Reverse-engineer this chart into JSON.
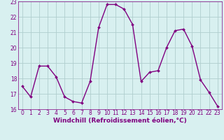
{
  "x": [
    0,
    1,
    2,
    3,
    4,
    5,
    6,
    7,
    8,
    9,
    10,
    11,
    12,
    13,
    14,
    15,
    16,
    17,
    18,
    19,
    20,
    21,
    22,
    23
  ],
  "y": [
    17.5,
    16.8,
    18.8,
    18.8,
    18.1,
    16.8,
    16.5,
    16.4,
    17.8,
    21.3,
    22.8,
    22.8,
    22.5,
    21.5,
    17.8,
    18.4,
    18.5,
    20.0,
    21.1,
    21.2,
    20.1,
    17.9,
    17.1,
    16.2
  ],
  "line_color": "#800080",
  "marker": "D",
  "marker_size": 2,
  "marker_color": "#800080",
  "bg_color": "#d8f0f0",
  "grid_color": "#b0cece",
  "xlabel": "Windchill (Refroidissement éolien,°C)",
  "xlabel_color": "#800080",
  "tick_color": "#800080",
  "ylim": [
    16,
    23
  ],
  "xlim": [
    -0.5,
    23.5
  ],
  "yticks": [
    16,
    17,
    18,
    19,
    20,
    21,
    22,
    23
  ],
  "xticks": [
    0,
    1,
    2,
    3,
    4,
    5,
    6,
    7,
    8,
    9,
    10,
    11,
    12,
    13,
    14,
    15,
    16,
    17,
    18,
    19,
    20,
    21,
    22,
    23
  ],
  "tick_fontsize": 5.5,
  "xlabel_fontsize": 6.5,
  "linewidth": 1.0
}
